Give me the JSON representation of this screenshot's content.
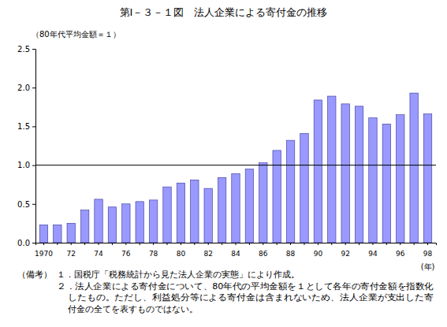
{
  "chart_data": {
    "type": "bar",
    "title": "第Ⅰ－３－１図　法人企業による寄付金の推移",
    "y_label": "（80年代平均金額＝１）",
    "x_label": "(年)",
    "categories": [
      "1970",
      null,
      "72",
      null,
      "74",
      null,
      "76",
      null,
      "78",
      null,
      "80",
      null,
      "82",
      null,
      "84",
      null,
      "86",
      null,
      "88",
      null,
      "90",
      null,
      "92",
      null,
      "94",
      null,
      "96",
      null,
      "98"
    ],
    "values": [
      0.23,
      0.23,
      0.25,
      0.42,
      0.56,
      0.46,
      0.5,
      0.53,
      0.55,
      0.72,
      0.77,
      0.81,
      0.7,
      0.84,
      0.89,
      0.95,
      1.03,
      1.19,
      1.32,
      1.41,
      1.84,
      1.89,
      1.79,
      1.76,
      1.61,
      1.53,
      1.65,
      1.93,
      1.66
    ],
    "color": "#9999ff",
    "ylim": [
      0,
      2.5
    ],
    "yticks": [
      {
        "value": 0,
        "label": "0.0"
      },
      {
        "value": 0.5,
        "label": "0.5"
      },
      {
        "value": 1,
        "label": "1.0"
      },
      {
        "value": 1.5,
        "label": "1.5"
      },
      {
        "value": 2,
        "label": "2.0"
      },
      {
        "value": 2.5,
        "label": "2.5"
      }
    ],
    "reference_line": 1,
    "grid": false,
    "note_label": "（備考）",
    "notes": [
      "１．国税庁「税務統計から見た法人企業の実態」により作成。",
      "２．法人企業による寄付金について、80年代の平均金額を１として各年の寄付金額を指数化",
      "したもの。ただし、利益処分等による寄付金は含まれないため、法人企業が支出した寄",
      "付金の全てを表すものではない。"
    ]
  }
}
